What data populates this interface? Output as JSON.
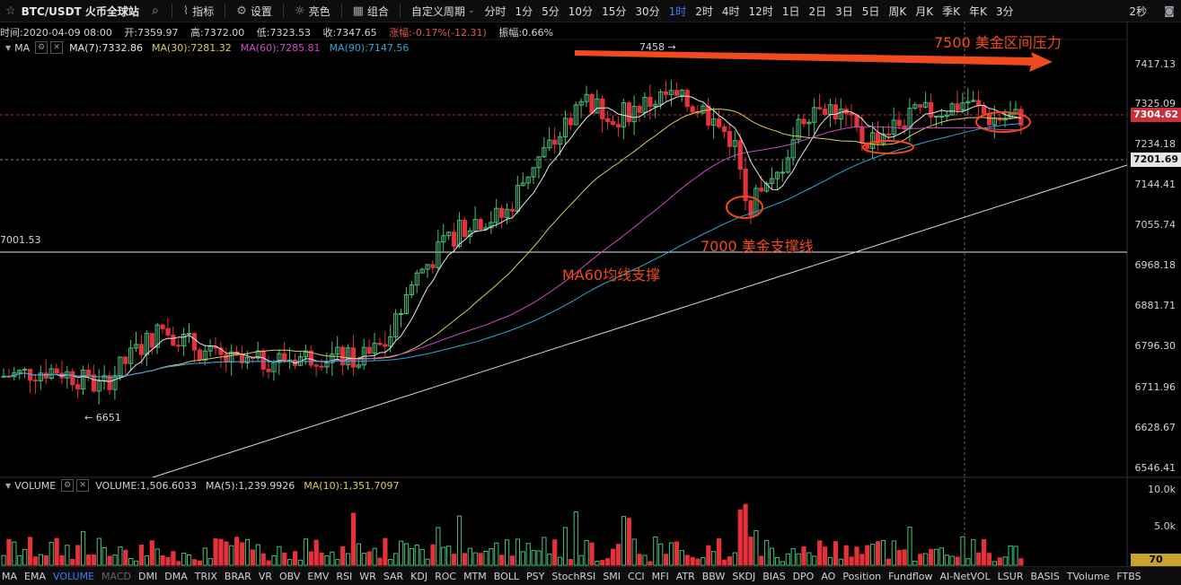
{
  "toolbar": {
    "symbol": "BTC/USDT 火币全球站",
    "buttons": [
      {
        "name": "indicators-button",
        "icon": "indicator-icon",
        "glyph": "⌇",
        "label": "指标"
      },
      {
        "name": "settings-button",
        "icon": "gear-icon",
        "glyph": "⚙",
        "label": "设置"
      },
      {
        "name": "theme-button",
        "icon": "sun-icon",
        "glyph": "☼",
        "label": "亮色"
      },
      {
        "name": "combo-button",
        "icon": "grid-icon",
        "glyph": "▦",
        "label": "组合"
      }
    ],
    "custom_period": "自定义周期",
    "periods": [
      "分时",
      "1分",
      "5分",
      "10分",
      "15分",
      "30分",
      "1时",
      "2时",
      "4时",
      "12时",
      "1日",
      "2日",
      "3日",
      "5日",
      "周K",
      "月K",
      "季K",
      "年K",
      "3分"
    ],
    "active_period": "1时",
    "countdown": "2秒"
  },
  "info": {
    "time": "时间:2020-04-09 08:00",
    "open": "开:7359.97",
    "high": "高:7372.00",
    "low": "低:7323.53",
    "close": "收:7347.65",
    "change": "涨幅:-0.17%(-12.31)",
    "amplitude": "振幅:0.66%"
  },
  "ma": {
    "label": "MA",
    "ma7": "MA(7):7332.86",
    "ma30": "MA(30):7281.32",
    "ma60": "MA(60):7285.81",
    "ma90": "MA(90):7147.56",
    "colors": {
      "ma7": "#e8e8e8",
      "ma30": "#d8cf58",
      "ma60": "#d04ac8",
      "ma90": "#2ea7d8",
      "up": "#48c27a",
      "down": "#e5323a"
    }
  },
  "volume": {
    "label": "VOLUME",
    "value": "VOLUME:1,506.6033",
    "ma5": "MA(5):1,239.9926",
    "ma10": "MA(10):1,351.7097",
    "axis": [
      "10.0k",
      "5.0k"
    ],
    "current_tag": "70"
  },
  "price_axis": [
    "7417.13",
    "7325.09",
    "7234.18",
    "7144.41",
    "7055.74",
    "6968.18",
    "6881.71",
    "6796.30",
    "6711.96",
    "6628.67",
    "6546.41"
  ],
  "price_tags": {
    "current": "7304.62",
    "line": "7201.69"
  },
  "left_level": "7001.53",
  "high_marker": "7458",
  "low_marker": "6651",
  "annotations": {
    "resistance": "7500 美金区间压力",
    "support7000": "7000 美金支撑线",
    "ma60": "MA60均线支撑"
  },
  "indicators": [
    "MA",
    "EMA",
    "VOLUME",
    "MACD",
    "DMI",
    "DMA",
    "TRIX",
    "BRAR",
    "VR",
    "OBV",
    "EMV",
    "RSI",
    "WR",
    "SAR",
    "KDJ",
    "ROC",
    "MTM",
    "BOLL",
    "PSY",
    "StochRSI",
    "SMI",
    "CCI",
    "MFI",
    "ATR",
    "BBW",
    "SKDJ",
    "BIAS",
    "DPO",
    "AO",
    "Position",
    "Fundflow",
    "AI-NetVOL",
    "LSUR",
    "BASIS",
    "TVolume",
    "FTBS"
  ],
  "active_indicator": "VOLUME",
  "dim_indicator": "MACD"
}
